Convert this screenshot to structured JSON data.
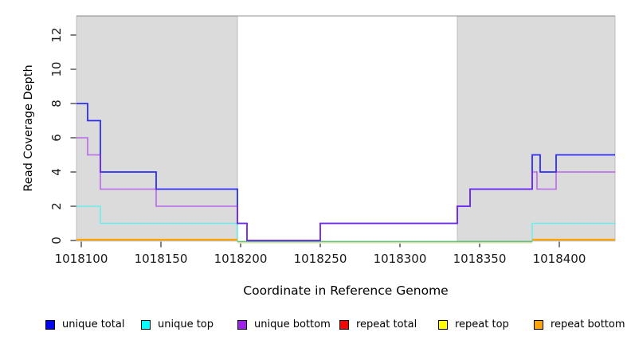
{
  "figure": {
    "background": "#ffffff"
  },
  "x_axis": {
    "title": "Coordinate in Reference Genome",
    "tick_values": [
      1018100,
      1018150,
      1018200,
      1018250,
      1018300,
      1018350,
      1018400
    ],
    "tick_labels": [
      "1018100",
      "1018150",
      "1018200",
      "1018250",
      "1018300",
      "1018350",
      "1018400"
    ]
  },
  "y_axis": {
    "title": "Read Coverage Depth",
    "tick_values": [
      0,
      2,
      4,
      6,
      8,
      10,
      12
    ],
    "tick_labels": [
      "0",
      "2",
      "4",
      "6",
      "8",
      "10",
      "12"
    ]
  },
  "shaded_regions": [
    {
      "from": 1018097,
      "to": 1018198,
      "color": "#DBDBDB"
    },
    {
      "from": 1018336,
      "to": 1018435,
      "color": "#DBDBDB"
    }
  ],
  "chart_data": {
    "type": "step",
    "title": "",
    "xlabel": "Coordinate in Reference Genome",
    "ylabel": "Read Coverage Depth",
    "x_range": [
      1018097,
      1018435
    ],
    "y_range": [
      0,
      13.1
    ],
    "grid": false,
    "legend_position": "bottom",
    "series": [
      {
        "name": "unique total",
        "color": "#0000FF",
        "steps": [
          [
            1018097,
            8
          ],
          [
            1018104,
            7
          ],
          [
            1018112,
            4
          ],
          [
            1018147,
            3
          ],
          [
            1018198,
            1
          ],
          [
            1018204,
            0
          ],
          [
            1018250,
            1
          ],
          [
            1018336,
            2
          ],
          [
            1018344,
            3
          ],
          [
            1018383,
            5
          ],
          [
            1018388,
            4
          ],
          [
            1018398,
            5
          ]
        ],
        "end": 1018435
      },
      {
        "name": "unique top",
        "color": "#00FFFF",
        "steps": [
          [
            1018097,
            2
          ],
          [
            1018112,
            1
          ],
          [
            1018198,
            0
          ],
          [
            1018383,
            1
          ]
        ],
        "end": 1018435
      },
      {
        "name": "unique bottom",
        "color": "#A020F0",
        "steps": [
          [
            1018097,
            6
          ],
          [
            1018104,
            5
          ],
          [
            1018112,
            3
          ],
          [
            1018147,
            2
          ],
          [
            1018198,
            1
          ],
          [
            1018204,
            0
          ],
          [
            1018250,
            1
          ],
          [
            1018336,
            2
          ],
          [
            1018344,
            3
          ],
          [
            1018383,
            4
          ],
          [
            1018386,
            3
          ],
          [
            1018398,
            4
          ]
        ],
        "end": 1018435
      },
      {
        "name": "repeat total",
        "color": "#FF0000",
        "steps": [],
        "end": 1018435
      },
      {
        "name": "repeat top",
        "color": "#FFFF00",
        "steps": [
          [
            1018198,
            0
          ]
        ],
        "end": 1018383
      },
      {
        "name": "repeat bottom",
        "color": "#FFA500",
        "segments": [
          {
            "from": 1018097,
            "to": 1018198,
            "value": 0
          },
          {
            "from": 1018383,
            "to": 1018435,
            "value": 0
          }
        ]
      }
    ],
    "overlap_line": {
      "name": "unique top + repeat top overlap",
      "color": "#6EBE78",
      "from": 1018198,
      "to": 1018383,
      "value": 0
    }
  },
  "legend": {
    "items": [
      {
        "label": "unique total",
        "color": "#0000FF"
      },
      {
        "label": "unique top",
        "color": "#00FFFF"
      },
      {
        "label": "unique bottom",
        "color": "#A020F0"
      },
      {
        "label": "repeat total",
        "color": "#FF0000"
      },
      {
        "label": "repeat top",
        "color": "#FFFF00"
      },
      {
        "label": "repeat bottom",
        "color": "#FFA500"
      }
    ]
  }
}
